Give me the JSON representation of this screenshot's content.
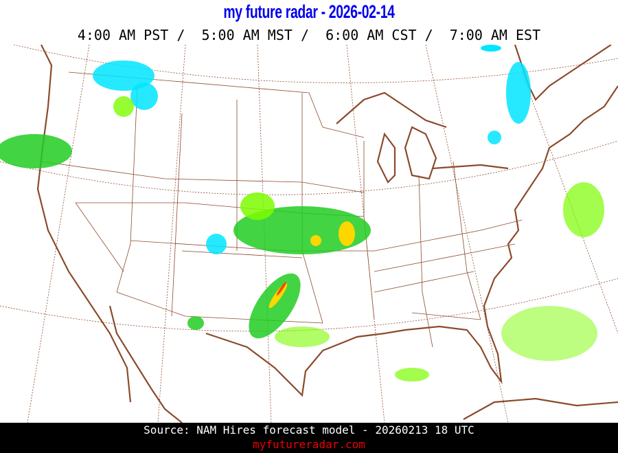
{
  "header": {
    "title": "my future radar - 2026-02-14",
    "times": "4:00 AM PST /  5:00 AM MST /  6:00 AM CST /  7:00 AM EST"
  },
  "footer": {
    "source": "Source: NAM Hires forecast model - 20260213 18 UTC",
    "site": "myfutureradar.com"
  },
  "colors": {
    "title": "#0000ee",
    "coastline": "#8b4a2b",
    "state_lines": "#8b4a2b",
    "rain_light": "#7cfc00",
    "rain_moderate": "#22cc22",
    "rain_heavy": "#ffd700",
    "rain_intense": "#ff4500",
    "snow": "#00e5ff"
  }
}
